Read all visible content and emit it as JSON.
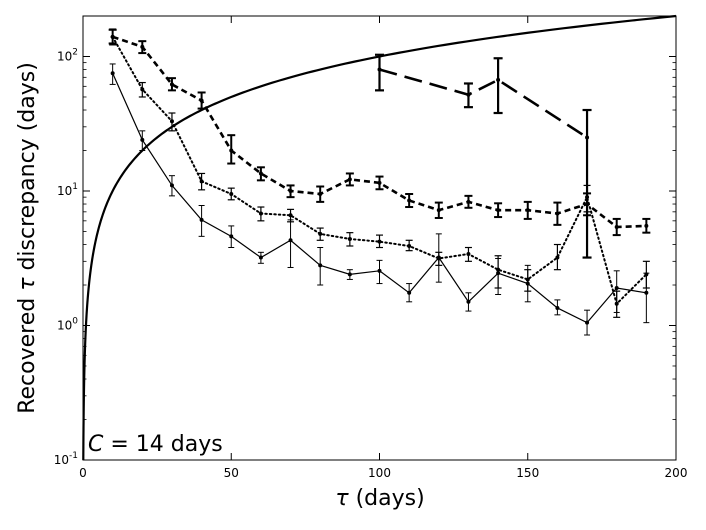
{
  "chart_data": {
    "type": "line",
    "xlabel_symbol": "τ",
    "xlabel_text": " (days)",
    "ylabel_prefix": "Recovered ",
    "ylabel_symbol": "τ",
    "ylabel_suffix": " discrepancy (days)",
    "annotation_symbol": "C",
    "annotation_text": " = 14 days",
    "xlim": [
      0,
      200
    ],
    "ylim": [
      0.1,
      200
    ],
    "yscale": "log",
    "grid": false,
    "x_ticks": [
      {
        "value": 0,
        "label": "0"
      },
      {
        "value": 50,
        "label": "50"
      },
      {
        "value": 100,
        "label": "100"
      },
      {
        "value": 150,
        "label": "150"
      },
      {
        "value": 200,
        "label": "200"
      }
    ],
    "y_ticks": [
      {
        "value": 0.1,
        "base": "10",
        "exp": "-1"
      },
      {
        "value": 1,
        "base": "10",
        "exp": "0"
      },
      {
        "value": 10,
        "base": "10",
        "exp": "1"
      },
      {
        "value": 100,
        "base": "10",
        "exp": "2"
      }
    ],
    "reference_curve": {
      "name": "y = x",
      "style": "thick-solid",
      "x_range": [
        0.1,
        200
      ]
    },
    "series": [
      {
        "name": "solid-thin",
        "style": "solid",
        "x": [
          10,
          20,
          30,
          40,
          50,
          60,
          70,
          80,
          90,
          100,
          110,
          120,
          130,
          140,
          150,
          160,
          170,
          180,
          190
        ],
        "y": [
          75,
          24,
          11,
          6.1,
          4.6,
          3.2,
          4.3,
          2.8,
          2.4,
          2.55,
          1.75,
          3.2,
          1.5,
          2.45,
          2.05,
          1.35,
          1.05,
          1.9,
          1.75
        ],
        "err_low": [
          62,
          20,
          9.2,
          4.6,
          3.8,
          2.9,
          2.7,
          2.0,
          2.2,
          2.05,
          1.5,
          2.1,
          1.28,
          1.7,
          1.5,
          1.2,
          0.85,
          1.25,
          1.05
        ],
        "err_high": [
          88,
          28,
          13,
          7.8,
          5.5,
          3.5,
          6.1,
          3.8,
          2.6,
          3.05,
          2.05,
          4.8,
          1.75,
          3.15,
          2.8,
          1.55,
          1.3,
          2.55,
          2.45
        ]
      },
      {
        "name": "dotted",
        "style": "dotted",
        "x": [
          10,
          20,
          30,
          40,
          50,
          60,
          70,
          80,
          90,
          100,
          110,
          120,
          130,
          140,
          150,
          160,
          170,
          180,
          190
        ],
        "y": [
          140,
          57,
          33,
          11.8,
          9.5,
          6.8,
          6.6,
          4.8,
          4.4,
          4.2,
          3.9,
          3.15,
          3.4,
          2.6,
          2.2,
          3.2,
          9.0,
          1.45,
          2.4
        ],
        "err_low": [
          122,
          50,
          28,
          10.2,
          8.6,
          6.0,
          5.9,
          4.3,
          3.9,
          3.8,
          3.6,
          2.8,
          3.0,
          1.9,
          1.8,
          2.6,
          7.0,
          1.15,
          1.9
        ],
        "err_high": [
          160,
          64,
          38,
          13.5,
          10.5,
          7.6,
          7.3,
          5.3,
          4.9,
          4.7,
          4.3,
          3.5,
          3.8,
          3.3,
          2.6,
          4.0,
          11.0,
          1.8,
          3.0
        ]
      },
      {
        "name": "dashed",
        "style": "dashed",
        "x": [
          10,
          20,
          30,
          40,
          50,
          60,
          70,
          80,
          90,
          100,
          110,
          120,
          130,
          140,
          150,
          160,
          170,
          180,
          190
        ],
        "y": [
          140,
          118,
          62,
          47,
          20,
          13.5,
          10,
          9.5,
          12.2,
          11.5,
          8.5,
          7.2,
          8.3,
          7.2,
          7.2,
          6.8,
          8.0,
          5.4,
          5.5
        ],
        "err_low": [
          125,
          106,
          56,
          41,
          16,
          12,
          9.0,
          8.3,
          11.0,
          10.3,
          7.6,
          6.3,
          7.5,
          6.4,
          6.2,
          5.6,
          6.6,
          4.7,
          4.9
        ],
        "err_high": [
          158,
          130,
          69,
          54,
          26,
          15,
          11,
          10.8,
          13.5,
          12.8,
          9.5,
          8.2,
          9.2,
          8.1,
          8.3,
          8.2,
          9.6,
          6.2,
          6.2
        ]
      },
      {
        "name": "long-dashed",
        "style": "long-dashed",
        "x": [
          100,
          130,
          140,
          170
        ],
        "y": [
          80,
          52,
          67,
          25
        ],
        "err_low": [
          56,
          42,
          38,
          3.2
        ],
        "err_high": [
          103,
          63,
          97,
          40
        ]
      }
    ]
  }
}
